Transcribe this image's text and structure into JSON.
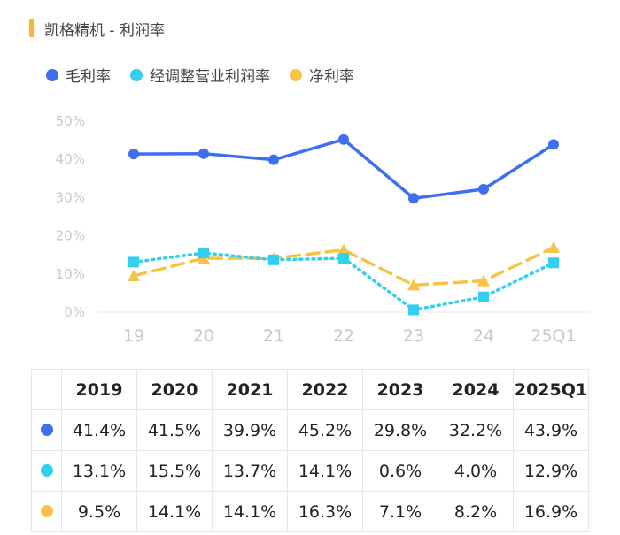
{
  "title": "凯格精机 - 利润率",
  "colors": {
    "accent": "#f7b733"
  },
  "legend": [
    {
      "label": "毛利率",
      "color": "#3e6ff0"
    },
    {
      "label": "经调整营业利润率",
      "color": "#33cfee"
    },
    {
      "label": "净利率",
      "color": "#f6c344"
    }
  ],
  "chart_data": {
    "type": "line",
    "title": "凯格精机 - 利润率",
    "categories": [
      "19",
      "20",
      "21",
      "22",
      "23",
      "24",
      "25Q1"
    ],
    "ylim": [
      0,
      50
    ],
    "yticks": [
      "0%",
      "10%",
      "20%",
      "30%",
      "40%",
      "50%"
    ],
    "grid": false,
    "legend_position": "top-left",
    "series": [
      {
        "name": "毛利率",
        "color": "#3e6ff0",
        "style": "solid",
        "marker": "circle",
        "values": [
          41.4,
          41.5,
          39.9,
          45.2,
          29.8,
          32.2,
          43.9
        ]
      },
      {
        "name": "经调整营业利润率",
        "color": "#33cfee",
        "style": "dotted",
        "marker": "square",
        "values": [
          13.1,
          15.5,
          13.7,
          14.1,
          0.6,
          4.0,
          12.9
        ]
      },
      {
        "name": "净利率",
        "color": "#f6c344",
        "style": "dashed",
        "marker": "triangle",
        "values": [
          9.5,
          14.1,
          14.1,
          16.3,
          7.1,
          8.2,
          16.9
        ]
      }
    ]
  },
  "table": {
    "headers": [
      "2019",
      "2020",
      "2021",
      "2022",
      "2023",
      "2024",
      "2025Q1"
    ],
    "rows": [
      {
        "color": "#3e6ff0",
        "cells": [
          "41.4%",
          "41.5%",
          "39.9%",
          "45.2%",
          "29.8%",
          "32.2%",
          "43.9%"
        ]
      },
      {
        "color": "#33cfee",
        "cells": [
          "13.1%",
          "15.5%",
          "13.7%",
          "14.1%",
          "0.6%",
          "4.0%",
          "12.9%"
        ]
      },
      {
        "color": "#f6c344",
        "cells": [
          "9.5%",
          "14.1%",
          "14.1%",
          "16.3%",
          "7.1%",
          "8.2%",
          "16.9%"
        ]
      }
    ]
  }
}
